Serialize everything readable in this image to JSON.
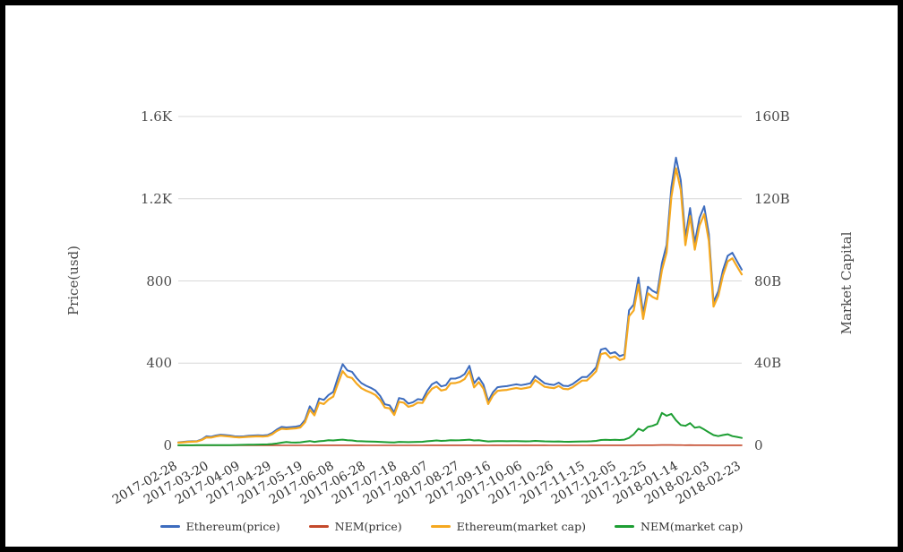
{
  "axes": {
    "left_title": "Price(usd)",
    "right_title": "Market Capital"
  },
  "chart_data": {
    "type": "line",
    "title": "",
    "x_start_date": "2017-02-28",
    "x_end_date": "2018-02-23",
    "x_point_interval_days": 3,
    "x_tick_labels": [
      "2017-02-28",
      "2017-03-20",
      "2017-04-09",
      "2017-04-29",
      "2017-05-19",
      "2017-06-08",
      "2017-06-28",
      "2017-07-18",
      "2017-08-07",
      "2017-08-27",
      "2017-09-16",
      "2017-10-06",
      "2017-10-26",
      "2017-11-15",
      "2017-12-05",
      "2017-12-25",
      "2018-01-14",
      "2018-02-03",
      "2018-02-23"
    ],
    "left_axis": {
      "label": "Price(usd)",
      "tick_labels": [
        "0",
        "400",
        "800",
        "1.2K",
        "1.6K"
      ],
      "tick_values": [
        0,
        400,
        800,
        1200,
        1600
      ],
      "range": [
        0,
        1600
      ]
    },
    "right_axis": {
      "label": "Market Capital",
      "tick_labels": [
        "0",
        "40B",
        "80B",
        "120B",
        "160B"
      ],
      "tick_values": [
        0,
        40,
        80,
        120,
        160
      ],
      "range": [
        0,
        160
      ]
    },
    "grid": "horizontal-only",
    "legend_position": "bottom-center",
    "grid_color": "#d8d8d8",
    "series": [
      {
        "name": "Ethereum(price)",
        "axis": "left",
        "color": "#3d6cbe",
        "width": 2,
        "values": [
          15,
          17,
          19,
          20,
          21,
          29,
          44,
          42,
          48,
          52,
          50,
          48,
          44,
          43,
          44,
          47,
          48,
          49,
          48,
          50,
          60,
          77,
          90,
          87,
          89,
          91,
          96,
          124,
          190,
          160,
          228,
          221,
          245,
          260,
          330,
          395,
          365,
          358,
          327,
          303,
          290,
          280,
          267,
          240,
          200,
          195,
          160,
          230,
          225,
          203,
          210,
          225,
          222,
          265,
          297,
          309,
          287,
          293,
          325,
          325,
          332,
          347,
          387,
          302,
          330,
          295,
          215,
          258,
          283,
          286,
          288,
          293,
          297,
          293,
          297,
          302,
          337,
          320,
          302,
          297,
          294,
          305,
          290,
          288,
          298,
          315,
          332,
          332,
          354,
          380,
          466,
          472,
          447,
          454,
          434,
          442,
          657,
          685,
          817,
          642,
          772,
          752,
          740,
          886,
          975,
          1255,
          1400,
          1290,
          1010,
          1155,
          986,
          1106,
          1163,
          1027,
          697,
          750,
          852,
          922,
          937,
          895,
          855
        ]
      },
      {
        "name": "Ethereum(market cap)",
        "axis": "right",
        "color": "#f5a81f",
        "width": 2.2,
        "values": [
          1.3,
          1.5,
          1.7,
          1.8,
          1.9,
          2.6,
          3.9,
          3.8,
          4.3,
          4.7,
          4.5,
          4.3,
          4.0,
          3.9,
          4.0,
          4.2,
          4.3,
          4.4,
          4.3,
          4.5,
          5.4,
          7.0,
          8.1,
          7.9,
          8.1,
          8.3,
          8.7,
          11.3,
          17.3,
          14.6,
          20.8,
          20.1,
          22.3,
          23.7,
          30.1,
          36.1,
          33.4,
          32.8,
          30.0,
          27.8,
          26.6,
          25.7,
          24.5,
          22.1,
          18.4,
          18.0,
          14.8,
          21.2,
          20.8,
          18.8,
          19.4,
          20.8,
          20.6,
          24.6,
          27.5,
          28.7,
          26.7,
          27.2,
          30.2,
          30.3,
          30.9,
          32.3,
          36.1,
          28.2,
          30.8,
          27.6,
          20.1,
          24.2,
          26.5,
          26.8,
          27.0,
          27.5,
          27.9,
          27.5,
          27.9,
          28.4,
          31.8,
          30.2,
          28.5,
          28.1,
          27.8,
          28.9,
          27.5,
          27.3,
          28.3,
          29.9,
          31.5,
          31.5,
          33.7,
          36.1,
          44.4,
          45.0,
          42.6,
          43.3,
          41.5,
          42.2,
          62.8,
          65.6,
          78.2,
          61.5,
          74.0,
          72.2,
          71.1,
          85.2,
          93.8,
          120.8,
          134.8,
          124.4,
          97.4,
          111.5,
          95.2,
          106.9,
          112.5,
          99.4,
          67.5,
          72.7,
          82.6,
          89.5,
          91.0,
          87.0,
          83.2
        ]
      },
      {
        "name": "NEM(price)",
        "axis": "left",
        "color": "#c4492b",
        "width": 1.6,
        "values": [
          0.006,
          0.006,
          0.007,
          0.007,
          0.008,
          0.009,
          0.011,
          0.011,
          0.013,
          0.014,
          0.016,
          0.017,
          0.02,
          0.022,
          0.028,
          0.033,
          0.039,
          0.044,
          0.05,
          0.056,
          0.072,
          0.1,
          0.14,
          0.18,
          0.16,
          0.15,
          0.17,
          0.2,
          0.23,
          0.19,
          0.22,
          0.24,
          0.28,
          0.27,
          0.29,
          0.31,
          0.28,
          0.27,
          0.23,
          0.22,
          0.21,
          0.21,
          0.2,
          0.19,
          0.17,
          0.17,
          0.16,
          0.19,
          0.18,
          0.17,
          0.18,
          0.19,
          0.19,
          0.22,
          0.24,
          0.27,
          0.24,
          0.25,
          0.28,
          0.27,
          0.28,
          0.29,
          0.31,
          0.27,
          0.28,
          0.24,
          0.21,
          0.22,
          0.23,
          0.23,
          0.22,
          0.23,
          0.23,
          0.22,
          0.22,
          0.22,
          0.24,
          0.23,
          0.22,
          0.21,
          0.21,
          0.21,
          0.2,
          0.19,
          0.2,
          0.21,
          0.21,
          0.21,
          0.22,
          0.24,
          0.29,
          0.3,
          0.29,
          0.3,
          0.29,
          0.31,
          0.4,
          0.6,
          0.9,
          0.78,
          1.0,
          1.06,
          1.16,
          1.76,
          1.6,
          1.7,
          1.36,
          1.1,
          1.06,
          1.2,
          0.96,
          1.0,
          0.86,
          0.7,
          0.56,
          0.5,
          0.56,
          0.6,
          0.5,
          0.46,
          0.4
        ]
      },
      {
        "name": "NEM(market cap)",
        "axis": "right",
        "color": "#1d9e33",
        "width": 2,
        "values": [
          0.05,
          0.05,
          0.06,
          0.06,
          0.07,
          0.08,
          0.1,
          0.1,
          0.12,
          0.13,
          0.14,
          0.15,
          0.18,
          0.2,
          0.25,
          0.3,
          0.35,
          0.4,
          0.45,
          0.5,
          0.65,
          0.9,
          1.3,
          1.6,
          1.4,
          1.35,
          1.5,
          1.8,
          2.1,
          1.7,
          2.0,
          2.2,
          2.5,
          2.4,
          2.6,
          2.8,
          2.5,
          2.4,
          2.1,
          2.0,
          1.9,
          1.85,
          1.8,
          1.7,
          1.55,
          1.5,
          1.4,
          1.7,
          1.65,
          1.55,
          1.6,
          1.7,
          1.75,
          2.0,
          2.2,
          2.4,
          2.2,
          2.25,
          2.5,
          2.45,
          2.5,
          2.6,
          2.8,
          2.4,
          2.5,
          2.2,
          1.9,
          2.0,
          2.1,
          2.05,
          2.0,
          2.05,
          2.1,
          2.0,
          1.95,
          2.0,
          2.2,
          2.1,
          1.95,
          1.9,
          1.85,
          1.9,
          1.8,
          1.75,
          1.8,
          1.85,
          1.9,
          1.9,
          2.0,
          2.2,
          2.6,
          2.7,
          2.6,
          2.7,
          2.6,
          2.8,
          3.6,
          5.4,
          8.1,
          7.0,
          9.0,
          9.5,
          10.4,
          15.8,
          14.4,
          15.3,
          12.2,
          9.9,
          9.5,
          10.8,
          8.6,
          9.0,
          7.7,
          6.3,
          5.0,
          4.5,
          5.0,
          5.4,
          4.5,
          4.1,
          3.6
        ]
      }
    ],
    "legend": [
      "Ethereum(price)",
      "NEM(price)",
      "Ethereum(market cap)",
      "NEM(market cap)"
    ]
  }
}
